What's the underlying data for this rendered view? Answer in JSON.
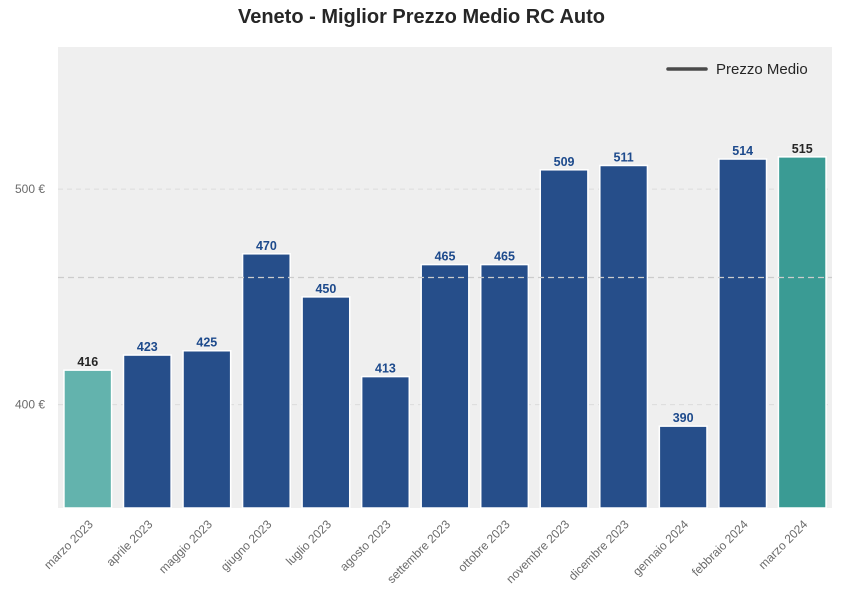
{
  "chart_data": {
    "type": "bar",
    "title": "Veneto - Miglior Prezzo Medio RC Auto",
    "categories": [
      "marzo 2023",
      "aprile 2023",
      "maggio 2023",
      "giugno 2023",
      "luglio 2023",
      "agosto 2023",
      "settembre 2023",
      "ottobre 2023",
      "novembre 2023",
      "dicembre 2023",
      "gennaio 2024",
      "febbraio 2024",
      "marzo 2024"
    ],
    "values": [
      416,
      423,
      425,
      470,
      450,
      413,
      465,
      465,
      509,
      511,
      390,
      514,
      515
    ],
    "value_labels": [
      "416",
      "423",
      "425",
      "470",
      "450",
      "413",
      "465",
      "465",
      "509",
      "511",
      "390",
      "514",
      "515"
    ],
    "bar_colors": [
      "#63b3ad",
      "#264e8a",
      "#264e8a",
      "#264e8a",
      "#264e8a",
      "#264e8a",
      "#264e8a",
      "#264e8a",
      "#264e8a",
      "#264e8a",
      "#264e8a",
      "#264e8a",
      "#3a9b94"
    ],
    "label_colors": [
      "#262626",
      "#1d4a8c",
      "#1d4a8c",
      "#1d4a8c",
      "#1d4a8c",
      "#1d4a8c",
      "#1d4a8c",
      "#1d4a8c",
      "#1d4a8c",
      "#1d4a8c",
      "#1d4a8c",
      "#1d4a8c",
      "#262626"
    ],
    "yticks": [
      400,
      500
    ],
    "ytick_labels": [
      "400 €",
      "500 €"
    ],
    "ylim": [
      352,
      566
    ],
    "mean_line": 459,
    "legend": {
      "label": "Prezzo Medio",
      "position": "top-right"
    },
    "grid": true,
    "xlabel": "",
    "ylabel": ""
  }
}
